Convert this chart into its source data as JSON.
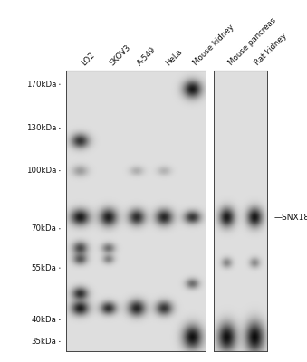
{
  "fig_bg": "#ffffff",
  "blot_bg": 0.87,
  "mw_labels": [
    "170kDa",
    "130kDa",
    "100kDa",
    "70kDa",
    "55kDa",
    "40kDa",
    "35kDa"
  ],
  "mw_values": [
    170,
    130,
    100,
    70,
    55,
    40,
    35
  ],
  "annotation": "SNX18",
  "annotation_mw": 75,
  "label_fontsize": 6.2,
  "mw_fontsize": 6.2,
  "lane_labels_p1": [
    "LO2",
    "SKOV3",
    "A-549",
    "HeLa",
    "Mouse kidney"
  ],
  "lane_labels_p2": [
    "Mouse pancreas",
    "Rat kidney"
  ],
  "bands_p1": [
    {
      "lane": 0,
      "mw": 120,
      "intensity": 0.78,
      "xsig": 0.045,
      "ysig": 0.018
    },
    {
      "lane": 0,
      "mw": 100,
      "intensity": 0.3,
      "xsig": 0.04,
      "ysig": 0.014
    },
    {
      "lane": 0,
      "mw": 75,
      "intensity": 0.9,
      "xsig": 0.048,
      "ysig": 0.02
    },
    {
      "lane": 0,
      "mw": 62,
      "intensity": 0.68,
      "xsig": 0.038,
      "ysig": 0.016
    },
    {
      "lane": 0,
      "mw": 58,
      "intensity": 0.6,
      "xsig": 0.036,
      "ysig": 0.014
    },
    {
      "lane": 0,
      "mw": 47,
      "intensity": 0.8,
      "xsig": 0.04,
      "ysig": 0.016
    },
    {
      "lane": 0,
      "mw": 43,
      "intensity": 0.88,
      "xsig": 0.044,
      "ysig": 0.018
    },
    {
      "lane": 1,
      "mw": 75,
      "intensity": 0.88,
      "xsig": 0.044,
      "ysig": 0.022
    },
    {
      "lane": 1,
      "mw": 62,
      "intensity": 0.5,
      "xsig": 0.034,
      "ysig": 0.013
    },
    {
      "lane": 1,
      "mw": 58,
      "intensity": 0.42,
      "xsig": 0.03,
      "ysig": 0.012
    },
    {
      "lane": 1,
      "mw": 43,
      "intensity": 0.8,
      "xsig": 0.04,
      "ysig": 0.016
    },
    {
      "lane": 2,
      "mw": 100,
      "intensity": 0.22,
      "xsig": 0.036,
      "ysig": 0.012
    },
    {
      "lane": 2,
      "mw": 75,
      "intensity": 0.82,
      "xsig": 0.042,
      "ysig": 0.02
    },
    {
      "lane": 2,
      "mw": 43,
      "intensity": 0.85,
      "xsig": 0.044,
      "ysig": 0.02
    },
    {
      "lane": 3,
      "mw": 100,
      "intensity": 0.2,
      "xsig": 0.036,
      "ysig": 0.012
    },
    {
      "lane": 3,
      "mw": 75,
      "intensity": 0.85,
      "xsig": 0.044,
      "ysig": 0.02
    },
    {
      "lane": 3,
      "mw": 43,
      "intensity": 0.78,
      "xsig": 0.042,
      "ysig": 0.018
    },
    {
      "lane": 4,
      "mw": 165,
      "intensity": 0.92,
      "xsig": 0.046,
      "ysig": 0.022
    },
    {
      "lane": 4,
      "mw": 75,
      "intensity": 0.78,
      "xsig": 0.042,
      "ysig": 0.016
    },
    {
      "lane": 4,
      "mw": 50,
      "intensity": 0.52,
      "xsig": 0.034,
      "ysig": 0.013
    },
    {
      "lane": 4,
      "mw": 36,
      "intensity": 0.95,
      "xsig": 0.048,
      "ysig": 0.03
    }
  ],
  "bands_p2": [
    {
      "lane": 0,
      "mw": 75,
      "intensity": 0.9,
      "xsig": 0.1,
      "ysig": 0.024
    },
    {
      "lane": 0,
      "mw": 57,
      "intensity": 0.4,
      "xsig": 0.07,
      "ysig": 0.013
    },
    {
      "lane": 0,
      "mw": 36,
      "intensity": 0.95,
      "xsig": 0.12,
      "ysig": 0.035
    },
    {
      "lane": 1,
      "mw": 75,
      "intensity": 0.92,
      "xsig": 0.1,
      "ysig": 0.024
    },
    {
      "lane": 1,
      "mw": 57,
      "intensity": 0.38,
      "xsig": 0.07,
      "ysig": 0.013
    },
    {
      "lane": 1,
      "mw": 36,
      "intensity": 0.97,
      "xsig": 0.12,
      "ysig": 0.038
    }
  ],
  "n_lanes_p1": 5,
  "n_lanes_p2": 2
}
